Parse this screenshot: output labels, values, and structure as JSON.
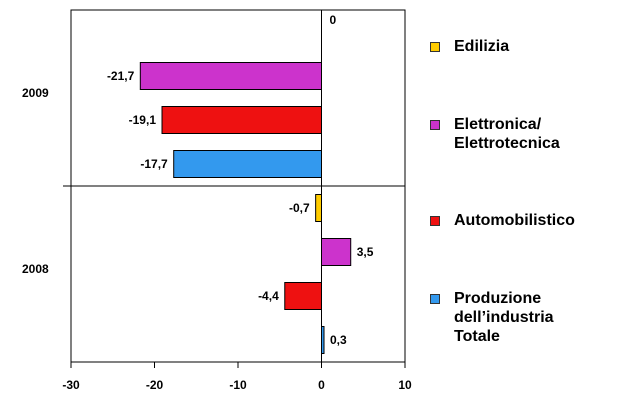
{
  "chart_data": {
    "type": "bar",
    "orientation": "horizontal",
    "categories": [
      "2009",
      "2008"
    ],
    "series": [
      {
        "name": "Edilizia",
        "color": "#ffcc00",
        "values": [
          0,
          -0.7
        ],
        "labels": [
          "0",
          "-0,7"
        ]
      },
      {
        "name": "Elettronica/\nElettrotecnica",
        "color": "#cc33cc",
        "values": [
          -21.7,
          3.5
        ],
        "labels": [
          "-21,7",
          "3,5"
        ]
      },
      {
        "name": "Automobilistico",
        "color": "#ee1111",
        "values": [
          -19.1,
          -4.4
        ],
        "labels": [
          "-19,1",
          "-4,4"
        ]
      },
      {
        "name": "Produzione\ndell’industria\nTotale",
        "color": "#3399ee",
        "values": [
          -17.7,
          0.3
        ],
        "labels": [
          "-17,7",
          "0,3"
        ]
      }
    ],
    "xlim": [
      -30,
      10
    ],
    "x_ticks": [
      -30,
      -20,
      -10,
      0,
      10
    ],
    "grid": "horizontal divider between categories",
    "legend_position": "right"
  }
}
